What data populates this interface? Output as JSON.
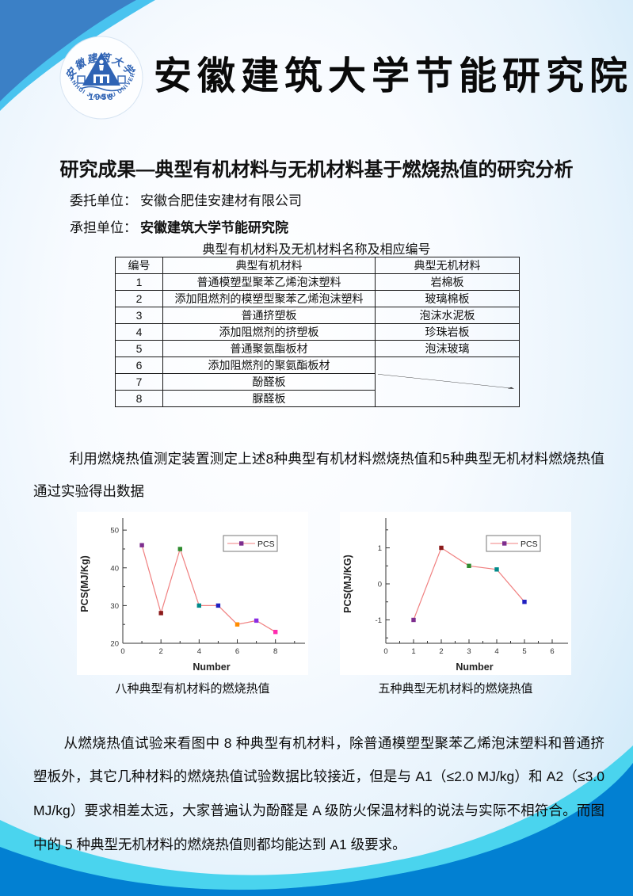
{
  "header": {
    "institute_name": "安徽建筑大学节能研究院",
    "logo": {
      "top_text": "安徽建筑大学",
      "ring_text": "ANHUI JIANZHU UNIVERSITY",
      "year": "1958"
    }
  },
  "title": "研究成果—典型有机材料与无机材料基于燃烧热值的研究分析",
  "meta": {
    "consignor_label": "委托单位：",
    "consignor": "安徽合肥佳安建材有限公司",
    "undertaker_label": "承担单位：",
    "undertaker": "安徽建筑大学节能研究院"
  },
  "table": {
    "caption": "典型有机材料及无机材料名称及相应编号",
    "headers": [
      "编号",
      "典型有机材料",
      "典型无机材料"
    ],
    "rows": [
      [
        "1",
        "普通模塑型聚苯乙烯泡沫塑料",
        "岩棉板"
      ],
      [
        "2",
        "添加阻燃剂的模塑型聚苯乙烯泡沫塑料",
        "玻璃棉板"
      ],
      [
        "3",
        "普通挤塑板",
        "泡沫水泥板"
      ],
      [
        "4",
        "添加阻燃剂的挤塑板",
        "珍珠岩板"
      ],
      [
        "5",
        "普通聚氨酯板材",
        "泡沫玻璃"
      ],
      [
        "6",
        "添加阻燃剂的聚氨酯板材",
        ""
      ],
      [
        "7",
        "酚醛板",
        ""
      ],
      [
        "8",
        "脲醛板",
        ""
      ]
    ]
  },
  "paragraphs": {
    "p1": "利用燃烧热值测定装置测定上述8种典型有机材料燃烧热值和5种典型无机材料燃烧热值通过实验得出数据",
    "p2": "从燃烧热值试验来看图中 8 种典型有机材料，除普通模塑型聚苯乙烯泡沫塑料和普通挤塑板外，其它几种材料的燃烧热值试验数据比较接近，但是与 A1（≤2.0 MJ/kg）和 A2（≤3.0 MJ/kg）要求相差太远，大家普遍认为酚醛是 A 级防火保温材料的说法与实际不相符合。而图中的 5 种典型无机材料的燃烧热值则都均能达到 A1 级要求。"
  },
  "figures": {
    "caption1": "八种典型有机材料的燃烧热值",
    "caption2": "五种典型无机材料的燃烧热值"
  },
  "colors": {
    "wedge_blue": "#3b80c6",
    "stripe_cyan": "#49c3ef",
    "deep_blue": "#0287d7",
    "turquoise": "#4ad4ee",
    "logo_blue": "#2f63b4",
    "chart_line": "#f08080"
  },
  "chart_data": [
    {
      "type": "line",
      "caption": "八种典型有机材料的燃烧热值",
      "legend": "PCS",
      "xlabel": "Number",
      "ylabel": "PCS(MJ/Kg)",
      "x": [
        1,
        2,
        3,
        4,
        5,
        6,
        7,
        8
      ],
      "y": [
        46,
        28,
        45,
        30,
        30,
        25,
        26,
        23
      ],
      "xlim": [
        0,
        9.3
      ],
      "ylim": [
        20,
        51.5
      ],
      "xticks": [
        0,
        2,
        4,
        6,
        8
      ],
      "yticks": [
        20,
        30,
        40,
        50
      ],
      "xminor": [
        1,
        3,
        5,
        7,
        9
      ],
      "yminor": [
        25,
        35,
        45
      ],
      "grid": false,
      "legend_position": "top-right",
      "line_color": "#f08080",
      "marker_colors": [
        "#7d2d8e",
        "#8b1a1a",
        "#2e8b2e",
        "#008b8b",
        "#2020c0",
        "#ff8c00",
        "#8a2be2",
        "#ff2ab0"
      ]
    },
    {
      "type": "line",
      "caption": "五种典型无机材料的燃烧热值",
      "legend": "PCS",
      "xlabel": "Number",
      "ylabel": "PCS(MJ/KG)",
      "x": [
        1,
        2,
        3,
        4,
        5
      ],
      "y": [
        -1,
        1,
        0.5,
        0.4,
        -0.5
      ],
      "xlim": [
        0,
        6.4
      ],
      "ylim": [
        -1.65,
        1.65
      ],
      "xticks": [
        0,
        1,
        2,
        3,
        4,
        5,
        6
      ],
      "yticks": [
        -1,
        0,
        1
      ],
      "xminor": [
        0.5,
        1.5,
        2.5,
        3.5,
        4.5,
        5.5
      ],
      "yminor": [
        -1.5,
        -0.5,
        0.5,
        1.5
      ],
      "grid": false,
      "legend_position": "top-right",
      "line_color": "#f08080",
      "marker_colors": [
        "#7d2d8e",
        "#8b1a1a",
        "#2e8b2e",
        "#008b8b",
        "#2020c0"
      ]
    }
  ]
}
